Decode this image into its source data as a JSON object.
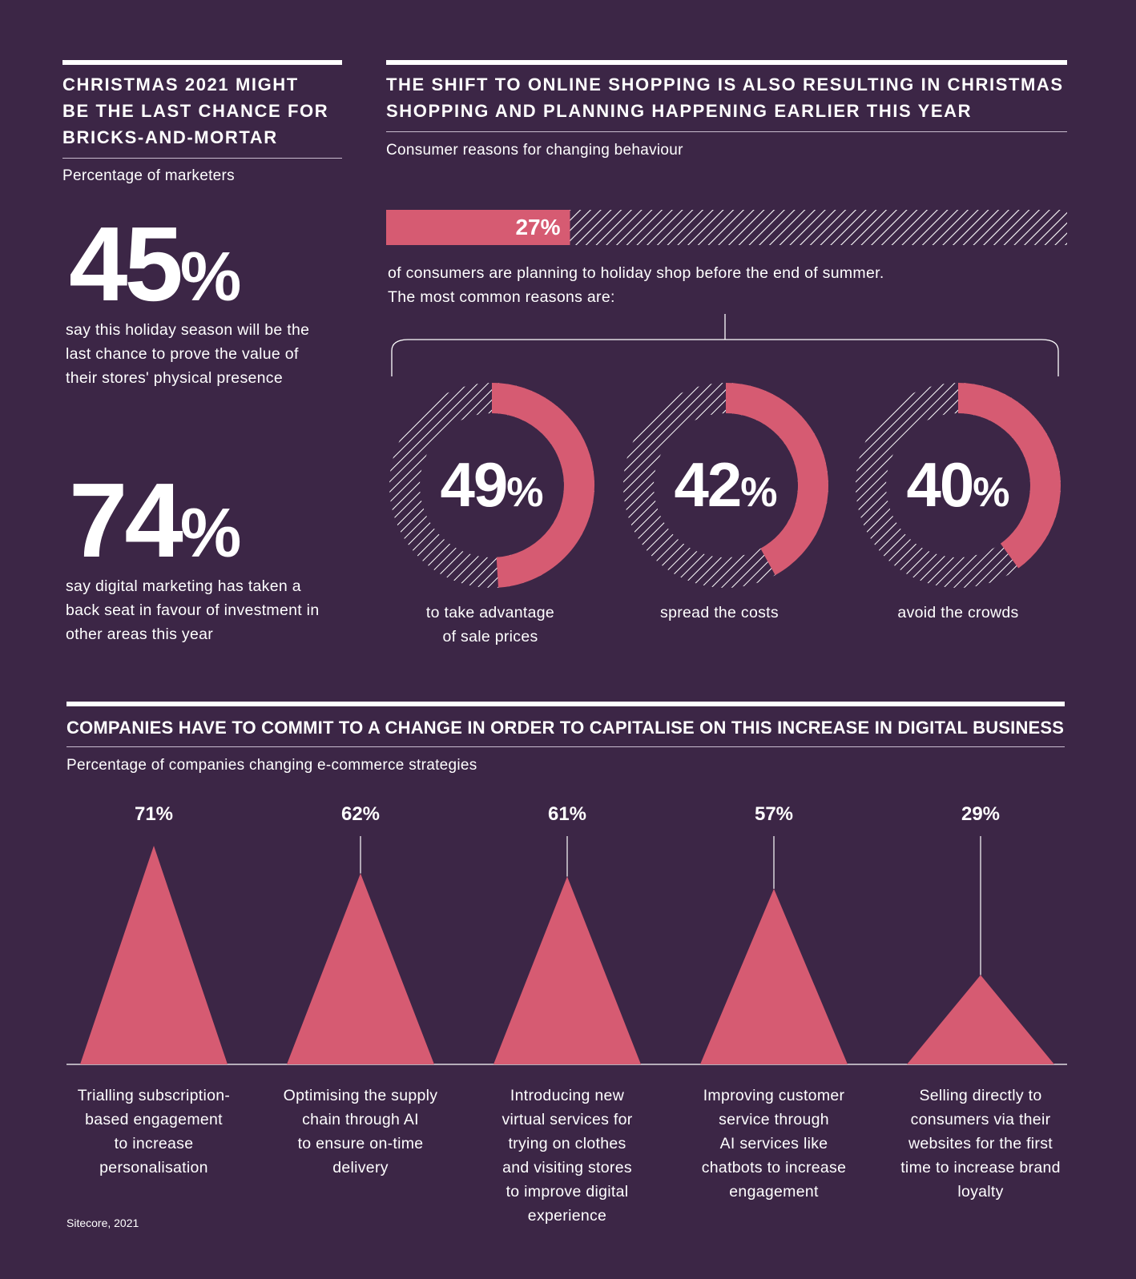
{
  "left_section": {
    "heading": "CHRISTMAS 2021 MIGHT BE THE LAST CHANCE FOR BRICKS-AND-MORTAR",
    "heading_lines": [
      "CHRISTMAS 2021 MIGHT",
      "BE THE LAST CHANCE FOR",
      "BRICKS-AND-MORTAR"
    ],
    "subtitle": "Percentage of marketers",
    "stats": [
      {
        "value": "45",
        "unit": "%",
        "text_lines": [
          "say this holiday season will be the",
          "last chance to prove the value of",
          "their stores' physical presence"
        ]
      },
      {
        "value": "74",
        "unit": "%",
        "text_lines": [
          "say digital marketing has taken a",
          "back seat in favour of investment in",
          "other areas this year"
        ]
      }
    ]
  },
  "right_section": {
    "heading_lines": [
      "THE SHIFT TO ONLINE SHOPPING IS ALSO RESULTING IN CHRISTMAS",
      "SHOPPING AND PLANNING HAPPENING EARLIER THIS YEAR"
    ],
    "subtitle": "Consumer reasons for changing behaviour",
    "bar_label": "27%",
    "bar_text_lines": [
      "of consumers are planning to holiday shop before the end of summer.",
      "The most common reasons are:"
    ]
  },
  "bottom_section": {
    "heading": "COMPANIES HAVE TO COMMIT TO A CHANGE IN ORDER TO CAPITALISE ON THIS INCREASE IN DIGITAL BUSINESS",
    "subtitle": "Percentage of companies changing e-commerce strategies"
  },
  "source": "Sitecore, 2021",
  "colors": {
    "background": "#3c2646",
    "accent": "#d65b72",
    "text": "#ffffff",
    "hatch": "#ffffff"
  },
  "chart_data": [
    {
      "type": "bar",
      "title": "",
      "categories": [
        "of consumers are planning to holiday shop before the end of summer."
      ],
      "values": [
        27
      ],
      "unit": "%",
      "ylim": [
        0,
        100
      ]
    },
    {
      "type": "pie",
      "title": "",
      "categories": [
        "to take advantage of sale prices",
        "spread the costs",
        "avoid the crowds"
      ],
      "category_lines": [
        [
          "to take advantage",
          "of sale prices"
        ],
        [
          "spread the costs"
        ],
        [
          "avoid the crowds"
        ]
      ],
      "values": [
        49,
        42,
        40
      ],
      "labels": [
        "49",
        "42",
        "40"
      ],
      "unit": "%"
    },
    {
      "type": "bar",
      "title": "",
      "categories": [
        "Trialling subscription-based engagement to increase personalisation",
        "Optimising the supply chain through AI to ensure on-time delivery",
        "Introducing new virtual services for trying on clothes and visiting stores to improve digital experience",
        "Improving customer service through AI services like chatbots to increase engagement",
        "Selling directly to consumers via their websites for the first time to increase brand loyalty"
      ],
      "category_lines": [
        [
          "Trialling subscription-",
          "based engagement",
          "to increase",
          "personalisation"
        ],
        [
          "Optimising the supply",
          "chain through AI",
          "to ensure on-time",
          "delivery"
        ],
        [
          "Introducing new",
          "virtual services for",
          "trying on clothes",
          "and visiting stores",
          "to improve digital",
          "experience"
        ],
        [
          "Improving customer",
          "service through",
          "AI services like",
          "chatbots to increase",
          "engagement"
        ],
        [
          "Selling directly to",
          "consumers via their",
          "websites for the first",
          "time to increase brand",
          "loyalty"
        ]
      ],
      "values": [
        71,
        62,
        61,
        57,
        29
      ],
      "labels": [
        "71%",
        "62%",
        "61%",
        "57%",
        "29%"
      ],
      "unit": "%",
      "ylim": [
        0,
        71
      ]
    }
  ]
}
